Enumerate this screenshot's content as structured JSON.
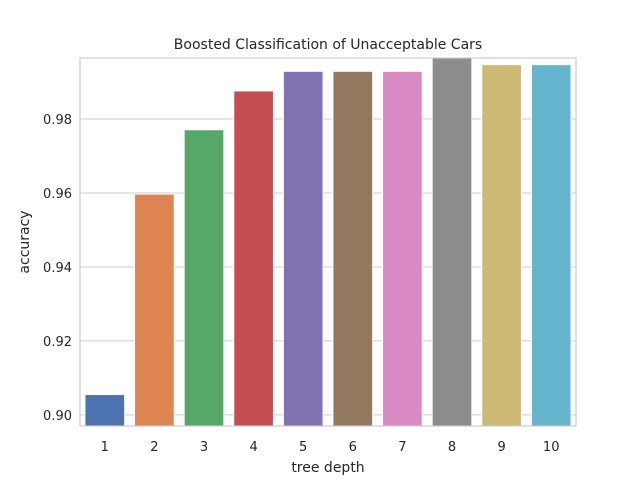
{
  "chart_data": {
    "type": "bar",
    "title": "Boosted Classification of Unacceptable Cars",
    "xlabel": "tree depth",
    "ylabel": "accuracy",
    "categories": [
      "1",
      "2",
      "3",
      "4",
      "5",
      "6",
      "7",
      "8",
      "9",
      "10"
    ],
    "values": [
      0.9055,
      0.9597,
      0.9771,
      0.9876,
      0.9929,
      0.9929,
      0.9929,
      0.9968,
      0.9947,
      0.9947
    ],
    "colors": [
      "#4c72b0",
      "#dd8452",
      "#55a868",
      "#c44e52",
      "#8172b3",
      "#937860",
      "#da8bc3",
      "#8c8c8c",
      "#ccb974",
      "#64b5cd"
    ],
    "ylim": [
      0.897,
      0.9965
    ],
    "yticks": [
      0.9,
      0.92,
      0.94,
      0.96,
      0.98
    ],
    "ytick_labels": [
      "0.90",
      "0.92",
      "0.94",
      "0.96",
      "0.98"
    ],
    "grid": "horizontal",
    "legend": "none"
  }
}
